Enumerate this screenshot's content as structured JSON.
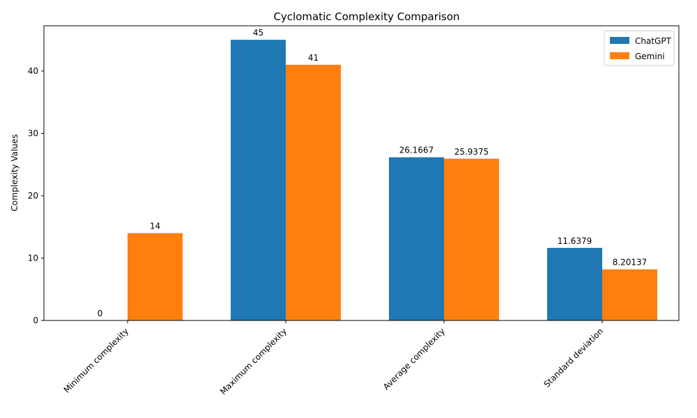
{
  "chart_data": {
    "type": "bar",
    "title": "Cyclomatic Complexity Comparison",
    "xlabel": "",
    "ylabel": "Complexity Values",
    "categories": [
      "Minimum complexity",
      "Maximum complexity",
      "Average complexity",
      "Standard deviation"
    ],
    "series": [
      {
        "name": "ChatGPT",
        "color": "#1f77b4",
        "values": [
          0,
          45,
          26.1667,
          11.6379
        ],
        "labels": [
          "0",
          "45",
          "26.1667",
          "11.6379"
        ]
      },
      {
        "name": "Gemini",
        "color": "#ff7f0e",
        "values": [
          14,
          41,
          25.9375,
          8.20137
        ],
        "labels": [
          "14",
          "41",
          "25.9375",
          "8.20137"
        ]
      }
    ],
    "ylim": [
      0,
      47.25
    ],
    "yticks": [
      0,
      10,
      20,
      30,
      40
    ],
    "grid": false,
    "legend_position": "top-right"
  }
}
